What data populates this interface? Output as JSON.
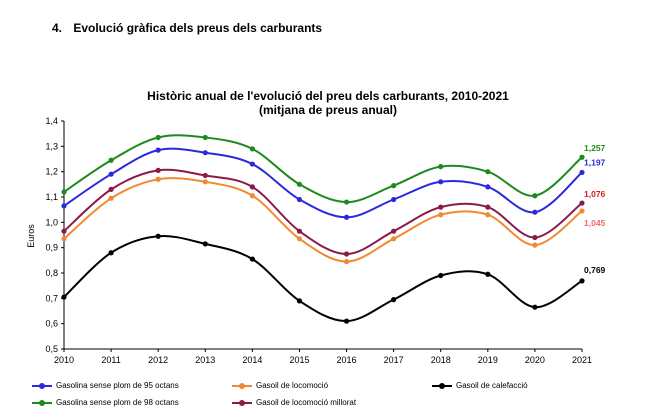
{
  "heading": {
    "number": "4.",
    "text": "Evolució gràfica dels preus dels carburants"
  },
  "chart_data": {
    "type": "line",
    "title": "Històric anual de l'evolució del preu dels carburants, 2010-2021",
    "subtitle": "(mitjana de preus anual)",
    "xlabel": "",
    "ylabel": "Euros",
    "ylim": [
      0.5,
      1.4
    ],
    "yticks": [
      "0,5",
      "0,6",
      "0,7",
      "0,8",
      "0,9",
      "1,0",
      "1,1",
      "1,2",
      "1,3",
      "1,4"
    ],
    "categories": [
      "2010",
      "2011",
      "2012",
      "2013",
      "2014",
      "2015",
      "2016",
      "2017",
      "2018",
      "2019",
      "2020",
      "2021"
    ],
    "grid": false,
    "legend_position": "bottom",
    "series": [
      {
        "name": "Gasolina sense plom de 95 octans",
        "color": "#2a2adc",
        "values": [
          1.065,
          1.19,
          1.285,
          1.275,
          1.23,
          1.09,
          1.02,
          1.09,
          1.16,
          1.14,
          1.04,
          1.197
        ],
        "end_label": "1,197"
      },
      {
        "name": "Gasoil de locomoció",
        "color": "#f08a30",
        "values": [
          0.935,
          1.095,
          1.17,
          1.16,
          1.105,
          0.935,
          0.845,
          0.935,
          1.03,
          1.03,
          0.91,
          1.045
        ],
        "end_label": "1,045",
        "label_color": "#f06a6a"
      },
      {
        "name": "Gasoil de calefacció",
        "color": "#000000",
        "values": [
          0.705,
          0.88,
          0.945,
          0.915,
          0.855,
          0.69,
          0.61,
          0.695,
          0.79,
          0.795,
          0.665,
          0.769
        ],
        "end_label": "0,769"
      },
      {
        "name": "Gasolina sense plom de 98 octans",
        "color": "#1c8a1c",
        "values": [
          1.12,
          1.245,
          1.335,
          1.335,
          1.29,
          1.15,
          1.08,
          1.145,
          1.22,
          1.2,
          1.105,
          1.257
        ],
        "end_label": "1,257"
      },
      {
        "name": "Gasoil de locomoció millorat",
        "color": "#8b1a4a",
        "values": [
          0.965,
          1.13,
          1.205,
          1.185,
          1.14,
          0.965,
          0.875,
          0.965,
          1.06,
          1.06,
          0.94,
          1.076
        ],
        "end_label": "1,076",
        "label_color": "#d21c1c"
      }
    ]
  }
}
